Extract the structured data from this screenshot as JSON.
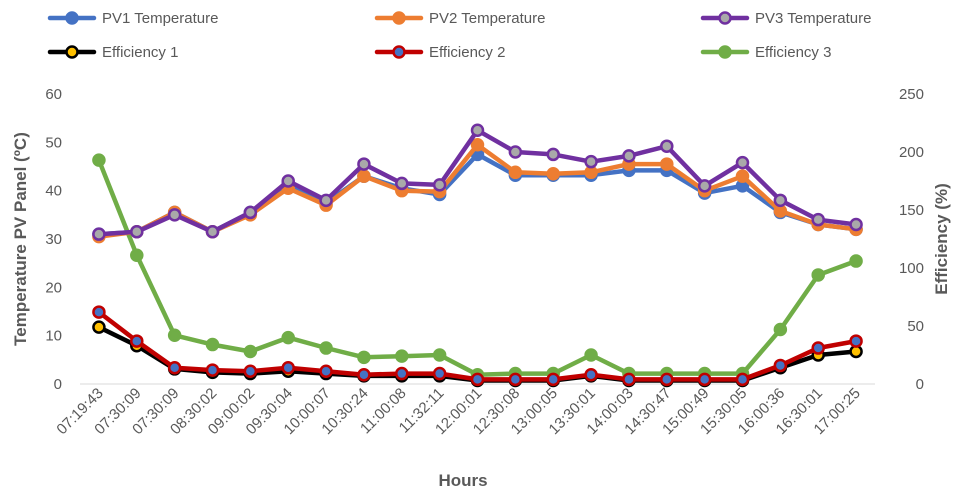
{
  "chart_data": {
    "type": "line",
    "title": "",
    "xlabel": "Hours",
    "ylabel_left": "Temperature PV Panel (ºC)",
    "ylabel_right": "Efficiency (%)",
    "ylim_left": [
      0,
      60
    ],
    "yticks_left": [
      0,
      10,
      20,
      30,
      40,
      50,
      60
    ],
    "ylim_right": [
      0,
      250
    ],
    "yticks_right": [
      0,
      50,
      100,
      150,
      200,
      250
    ],
    "grid": false,
    "legend_position": "top",
    "categories": [
      "07:19:43",
      "07:30:09",
      "07:30:09",
      "08:30:02",
      "09:00:02",
      "09:30:04",
      "10:00:07",
      "10:30:24",
      "11:00:08",
      "11:32:11",
      "12:00:01",
      "12:30:08",
      "13:00:05",
      "13:30:01",
      "14:00:03",
      "14:30:47",
      "15:00:49",
      "15:30:05",
      "16:00:36",
      "16:30:01",
      "17:00:25"
    ],
    "series": [
      {
        "name": "PV1 Temperature",
        "axis": "left",
        "color": "#4472C4",
        "marker_fill": "#4472C4",
        "values": [
          31,
          31.5,
          35.5,
          31.5,
          35.5,
          41.5,
          37.5,
          43,
          40.5,
          39.2,
          47.5,
          43.2,
          43.2,
          43.2,
          44.2,
          44.2,
          39.5,
          41,
          35.5,
          33,
          32
        ]
      },
      {
        "name": "PV2 Temperature",
        "axis": "left",
        "color": "#ED7D31",
        "marker_fill": "#ED7D31",
        "values": [
          30.5,
          31.5,
          35.5,
          31.5,
          35,
          40.5,
          37,
          43,
          40,
          39.8,
          49.5,
          43.8,
          43.5,
          43.8,
          45.5,
          45.5,
          40,
          43,
          35.8,
          33,
          32
        ]
      },
      {
        "name": "PV3 Temperature",
        "axis": "left",
        "color": "#7030A0",
        "marker_fill": "#A9A9A9",
        "values": [
          31,
          31.5,
          35,
          31.5,
          35.5,
          42,
          38,
          45.5,
          41.5,
          41.2,
          52.5,
          48,
          47.5,
          46,
          47.2,
          49.2,
          41,
          45.8,
          38,
          34,
          33
        ]
      },
      {
        "name": "Efficiency 1",
        "axis": "right",
        "color": "#000000",
        "marker_fill": "#FFC000",
        "values": [
          49,
          33,
          13,
          10,
          9,
          11,
          9,
          7,
          7,
          7,
          3,
          3,
          3,
          7,
          3,
          3,
          3,
          3,
          14,
          25,
          28
        ]
      },
      {
        "name": "Efficiency 2",
        "axis": "right",
        "color": "#C00000",
        "marker_fill": "#4472C4",
        "values": [
          62,
          37,
          14,
          12,
          11,
          14,
          11,
          8,
          9,
          9,
          4,
          4,
          4,
          8,
          4,
          4,
          4,
          4,
          16,
          31,
          37
        ]
      },
      {
        "name": "Efficiency 3",
        "axis": "right",
        "color": "#70AD47",
        "marker_fill": "#70AD47",
        "values": [
          193,
          111,
          42,
          34,
          28,
          40,
          31,
          23,
          24,
          25,
          8,
          9,
          9,
          25,
          9,
          9,
          9,
          9,
          47,
          94,
          106
        ]
      }
    ]
  }
}
